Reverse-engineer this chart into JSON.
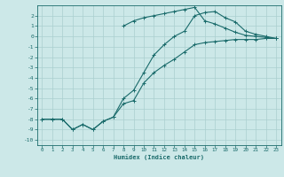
{
  "xlabel": "Humidex (Indice chaleur)",
  "bg_color": "#cce8e8",
  "grid_color": "#aacfcf",
  "line_color": "#1a6b6b",
  "xlim": [
    -0.5,
    23.5
  ],
  "ylim": [
    -10.5,
    3.0
  ],
  "xticks": [
    0,
    1,
    2,
    3,
    4,
    5,
    6,
    7,
    8,
    9,
    10,
    11,
    12,
    13,
    14,
    15,
    16,
    17,
    18,
    19,
    20,
    21,
    22,
    23
  ],
  "yticks": [
    -10,
    -9,
    -8,
    -7,
    -6,
    -5,
    -4,
    -3,
    -2,
    -1,
    0,
    1,
    2
  ],
  "line1_x": [
    0,
    1,
    2,
    3,
    4,
    5,
    6,
    7,
    8,
    9,
    10,
    11,
    12,
    13,
    14,
    15,
    16,
    17,
    18,
    19,
    20,
    21,
    22,
    23
  ],
  "line1_y": [
    -8,
    -8,
    -8,
    -9,
    -8.5,
    -9,
    -8.2,
    -7.8,
    -6.5,
    -6.2,
    -4.5,
    -3.5,
    -2.8,
    -2.2,
    -1.5,
    -0.8,
    -0.6,
    -0.5,
    -0.4,
    -0.3,
    -0.3,
    -0.3,
    -0.2,
    -0.2
  ],
  "line2_x": [
    0,
    1,
    2,
    3,
    4,
    5,
    6,
    7,
    8,
    9,
    10,
    11,
    12,
    13,
    14,
    15,
    16,
    17,
    18,
    19,
    20,
    21,
    22,
    23
  ],
  "line2_y": [
    -8,
    -8,
    -8,
    -9,
    -8.5,
    -9,
    -8.2,
    -7.8,
    -6.0,
    -5.2,
    -3.5,
    -1.8,
    -0.8,
    0.0,
    0.5,
    2.0,
    2.3,
    2.4,
    1.8,
    1.4,
    0.5,
    0.2,
    0.0,
    -0.2
  ],
  "line3_x": [
    8,
    9,
    10,
    11,
    12,
    13,
    14,
    15,
    16,
    17,
    18,
    19,
    20,
    21,
    22,
    23
  ],
  "line3_y": [
    1.0,
    1.5,
    1.8,
    2.0,
    2.2,
    2.4,
    2.6,
    2.8,
    1.5,
    1.2,
    0.8,
    0.4,
    0.1,
    0.0,
    -0.1,
    -0.2
  ]
}
